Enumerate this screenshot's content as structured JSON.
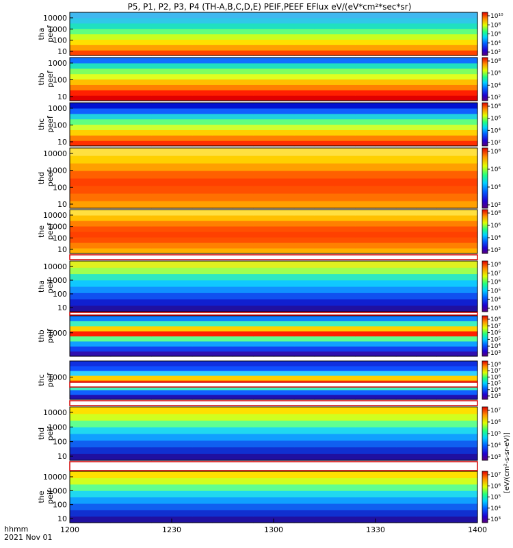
{
  "chart_data": {
    "type": "heatmap",
    "title": "P5, P1, P2, P3, P4 (TH-A,B,C,D,E) PEIF,PEEF EFlux eV/(eV*cm²*sec*sr)",
    "colorbar_unit": "[eV/(cm²-s-sr-eV)]",
    "colorscale": "rainbow (purple → blue → cyan → green → yellow → red)",
    "x_axis": {
      "tick_labels": [
        "1200",
        "1230",
        "1300",
        "1330",
        "1400"
      ],
      "range": [
        "1200",
        "1400"
      ],
      "corner_label_1": "hhmm",
      "corner_label_2": "2021 Nov 01"
    },
    "panels": [
      {
        "probe": "tha",
        "product": "peef",
        "ylabel_1": "tha",
        "ylabel_2": "peef",
        "y_ticks": [
          "10000",
          "1000",
          "100",
          "10"
        ],
        "colorbar_ticks": [
          "10¹⁰",
          "10⁸",
          "10⁶",
          "10⁴",
          "10²"
        ],
        "colors_by_energy_low_to_high": [
          "#ff4400",
          "#ffa000",
          "#ffe000",
          "#c8ff20",
          "#60ff80",
          "#20e0c0",
          "#30c8e8",
          "#40b8f0"
        ]
      },
      {
        "probe": "thb",
        "product": "peef",
        "ylabel_1": "thb",
        "ylabel_2": "peef",
        "y_ticks": [
          "1000",
          "100",
          "10"
        ],
        "colorbar_ticks": [
          "10⁸",
          "10⁶",
          "10⁴",
          "10²"
        ],
        "colors_by_energy_low_to_high": [
          "#e00000",
          "#ff2000",
          "#ff8000",
          "#ffc000",
          "#e0ff20",
          "#80ff60",
          "#20e0c0",
          "#1070ff"
        ]
      },
      {
        "probe": "thc",
        "product": "peef",
        "ylabel_1": "thc",
        "ylabel_2": "peef",
        "y_ticks": [
          "1000",
          "100",
          "10"
        ],
        "colorbar_ticks": [
          "10⁸",
          "10⁶",
          "10⁴",
          "10²"
        ],
        "colors_by_energy_low_to_high": [
          "#ff3000",
          "#ff8000",
          "#ffd000",
          "#d0ff30",
          "#60ff80",
          "#20d0e0",
          "#1060ff",
          "#0010d0"
        ]
      },
      {
        "probe": "thd",
        "product": "peef",
        "ylabel_1": "thd",
        "ylabel_2": "peef",
        "y_ticks": [
          "10000",
          "1000",
          "100",
          "10"
        ],
        "colorbar_ticks": [
          "10⁸",
          "10⁶",
          "10⁴",
          "10²"
        ],
        "colors_by_energy_low_to_high": [
          "#ffa000",
          "#ff7000",
          "#ff5000",
          "#ff4000",
          "#ff6000",
          "#ffa000",
          "#ffd000",
          "#ffe040"
        ]
      },
      {
        "probe": "the",
        "product": "peef",
        "ylabel_1": "the",
        "ylabel_2": "peef",
        "y_ticks": [
          "10000",
          "1000",
          "100",
          "10"
        ],
        "colorbar_ticks": [
          "10⁸",
          "10⁶",
          "10⁴",
          "10²"
        ],
        "colors_by_energy_low_to_high": [
          "#ffb000",
          "#ff8000",
          "#ff5000",
          "#ff4000",
          "#ff5000",
          "#ff8000",
          "#ffc000",
          "#ffe040"
        ]
      },
      {
        "probe": "tha",
        "product": "peif",
        "ylabel_1": "tha",
        "ylabel_2": "peif",
        "y_ticks": [
          "10000",
          "1000",
          "100",
          "10"
        ],
        "colorbar_ticks": [
          "10⁸",
          "10⁷",
          "10⁶",
          "10⁵",
          "10⁴",
          "10³"
        ],
        "colors_by_energy_low_to_high": [
          "#2010a0",
          "#1020d0",
          "#1050f0",
          "#1090ff",
          "#10c8ff",
          "#30e8c0",
          "#a0ff50",
          "#e0f020"
        ]
      },
      {
        "probe": "thb",
        "product": "peif",
        "ylabel_1": "thb",
        "ylabel_2": "peif",
        "y_ticks": [
          "1000"
        ],
        "colorbar_ticks": [
          "10⁸",
          "10⁷",
          "10⁶",
          "10⁵",
          "10⁴",
          "10³"
        ],
        "colors_by_energy_low_to_high": [
          "#3010b0",
          "#1040f0",
          "#10a0ff",
          "#60ff90",
          "#ff2000",
          "#ffd000",
          "#40f0c0",
          "#1080ff"
        ]
      },
      {
        "probe": "thc",
        "product": "peif",
        "ylabel_1": "thc",
        "ylabel_2": "peif",
        "y_ticks": [
          "1000"
        ],
        "colorbar_ticks": [
          "10⁸",
          "10⁷",
          "10⁶",
          "10⁵",
          "10⁴",
          "10³"
        ],
        "colors_by_energy_low_to_high": [
          "#2010b0",
          "#1060ff",
          "#40f0c0",
          "#ff4000",
          "#ffd000",
          "#30d0ff",
          "#1050ff",
          "#1030e0"
        ]
      },
      {
        "probe": "thd",
        "product": "peif",
        "ylabel_1": "thd",
        "ylabel_2": "peif",
        "y_ticks": [
          "10000",
          "1000",
          "100",
          "10"
        ],
        "colorbar_ticks": [
          "10⁷",
          "10⁶",
          "10⁵",
          "10⁴",
          "10³"
        ],
        "colors_by_energy_low_to_high": [
          "#2010a0",
          "#1030d0",
          "#1060f0",
          "#10a0ff",
          "#20d8f0",
          "#60ff90",
          "#d0ff20",
          "#ffe000"
        ]
      },
      {
        "probe": "the",
        "product": "peif",
        "ylabel_1": "the",
        "ylabel_2": "peif",
        "y_ticks": [
          "10000",
          "1000",
          "100",
          "10"
        ],
        "colorbar_ticks": [
          "10⁷",
          "10⁶",
          "10⁵",
          "10⁴",
          "10³"
        ],
        "colors_by_energy_low_to_high": [
          "#2010a0",
          "#1030d0",
          "#1060f0",
          "#10a0ff",
          "#20d8f0",
          "#60ff90",
          "#d0ff20",
          "#ffe000"
        ]
      }
    ]
  }
}
